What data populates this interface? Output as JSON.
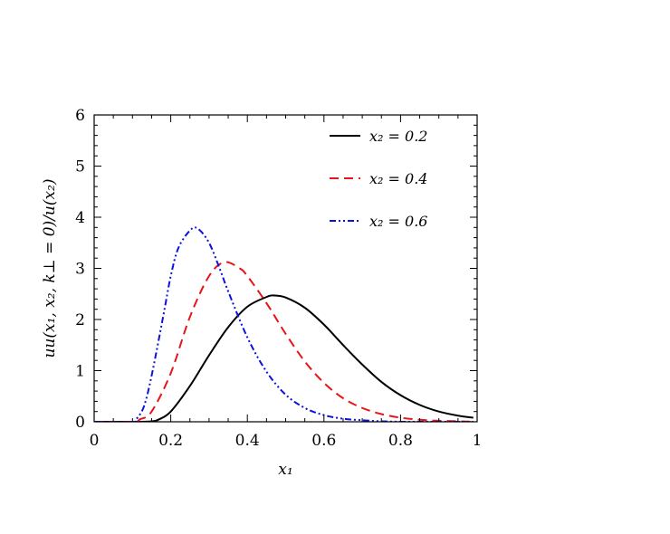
{
  "chart_data": {
    "type": "line",
    "xlabel": "x₁",
    "ylabel": "uu(x₁, x₂, k⊥ = 0)/u(x₂)",
    "xlim": [
      0,
      1
    ],
    "ylim": [
      0,
      6
    ],
    "x_ticks": [
      0,
      0.2,
      0.4,
      0.6,
      0.8,
      1
    ],
    "x_tick_labels": [
      "0",
      "0.2",
      "0.4",
      "0.6",
      "0.8",
      "1"
    ],
    "y_ticks": [
      0,
      1,
      2,
      3,
      4,
      5,
      6
    ],
    "y_tick_labels": [
      "0",
      "1",
      "2",
      "3",
      "4",
      "5",
      "6"
    ],
    "grid": false,
    "legend_position": "top-right",
    "series": [
      {
        "name": "x₂ = 0.2",
        "color": "#000000",
        "dash": "solid",
        "x": [
          0.0,
          0.1,
          0.15,
          0.17,
          0.2,
          0.25,
          0.3,
          0.35,
          0.4,
          0.45,
          0.47,
          0.5,
          0.55,
          0.6,
          0.65,
          0.7,
          0.75,
          0.8,
          0.85,
          0.9,
          0.95,
          0.99
        ],
        "y": [
          0.0,
          0.0,
          0.01,
          0.05,
          0.2,
          0.7,
          1.3,
          1.85,
          2.25,
          2.44,
          2.47,
          2.43,
          2.23,
          1.9,
          1.5,
          1.12,
          0.78,
          0.52,
          0.33,
          0.2,
          0.12,
          0.08
        ]
      },
      {
        "name": "x₂ = 0.4",
        "color": "#e8141b",
        "dash": "dashed",
        "x": [
          0.0,
          0.1,
          0.12,
          0.15,
          0.2,
          0.25,
          0.3,
          0.34,
          0.38,
          0.4,
          0.45,
          0.5,
          0.55,
          0.6,
          0.65,
          0.7,
          0.75,
          0.8,
          0.85,
          0.9,
          0.95,
          0.99
        ],
        "y": [
          0.0,
          0.0,
          0.05,
          0.2,
          0.95,
          2.05,
          2.85,
          3.12,
          3.0,
          2.85,
          2.32,
          1.72,
          1.18,
          0.76,
          0.46,
          0.27,
          0.15,
          0.08,
          0.04,
          0.02,
          0.01,
          0.0
        ]
      },
      {
        "name": "x₂ = 0.6",
        "color": "#0b12e0",
        "dash": "dash-dot-dot",
        "x": [
          0.0,
          0.1,
          0.11,
          0.13,
          0.15,
          0.18,
          0.2,
          0.22,
          0.25,
          0.27,
          0.3,
          0.33,
          0.35,
          0.4,
          0.45,
          0.5,
          0.55,
          0.6,
          0.65,
          0.7,
          0.75,
          0.8,
          0.85,
          0.9,
          0.95,
          0.99
        ],
        "y": [
          0.0,
          0.0,
          0.05,
          0.3,
          0.9,
          2.05,
          2.85,
          3.4,
          3.74,
          3.78,
          3.5,
          2.95,
          2.55,
          1.65,
          0.98,
          0.53,
          0.27,
          0.13,
          0.06,
          0.03,
          0.01,
          0.0,
          0.0,
          0.0,
          0.0,
          0.0
        ]
      }
    ]
  }
}
